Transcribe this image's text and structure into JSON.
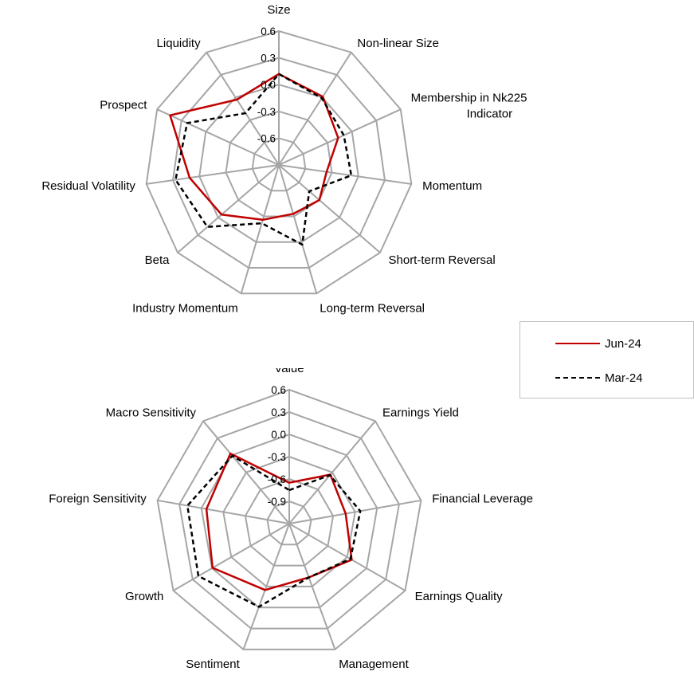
{
  "legend": {
    "items": [
      {
        "label": "Jun-24",
        "color": "#c00000",
        "dash": "solid"
      },
      {
        "label": "Mar-24",
        "color": "#000000",
        "dash": "dashed"
      }
    ]
  },
  "chart_data": [
    {
      "type": "radar",
      "axes": [
        "Size",
        "Non-linear Size",
        "Membership in Nk225 Indicator",
        "Momentum",
        "Short-term Reversal",
        "Long-term Reversal",
        "Industry Momentum",
        "Beta",
        "Residual Volatility",
        "Prospect",
        "Liquidity"
      ],
      "ticks": [
        "-0.6",
        "-0.3",
        "0.0",
        "0.3",
        "0.6"
      ],
      "range": [
        -0.9,
        0.6
      ],
      "series": [
        {
          "name": "Jun-24",
          "color": "#c00000",
          "values": [
            0.12,
            0.01,
            -0.17,
            -0.36,
            -0.3,
            -0.33,
            -0.26,
            -0.05,
            0.11,
            0.44,
            -0.03
          ]
        },
        {
          "name": "Mar-24",
          "color": "#000000",
          "values": [
            0.12,
            -0.01,
            -0.1,
            -0.08,
            -0.45,
            0.03,
            -0.22,
            0.16,
            0.27,
            0.23,
            -0.21
          ]
        }
      ]
    },
    {
      "type": "radar",
      "axes": [
        "Value",
        "Earnings Yield",
        "Financial Leverage",
        "Earnings Quality",
        "Management",
        "Sentiment",
        "Growth",
        "Foreign Sensitivity",
        "Macro Sensitivity"
      ],
      "ticks": [
        "-0.9",
        "-0.6",
        "-0.3",
        "0.0",
        "0.3",
        "0.6"
      ],
      "range": [
        -1.2,
        0.6
      ],
      "series": [
        {
          "name": "Jun-24",
          "color": "#c00000",
          "values": [
            -0.65,
            -0.34,
            -0.43,
            -0.23,
            -0.43,
            -0.25,
            -0.01,
            -0.07,
            0.03
          ]
        },
        {
          "name": "Mar-24",
          "color": "#000000",
          "values": [
            -0.75,
            -0.35,
            -0.23,
            -0.25,
            -0.43,
            -0.01,
            0.21,
            0.19,
            -0.01
          ]
        }
      ]
    }
  ]
}
